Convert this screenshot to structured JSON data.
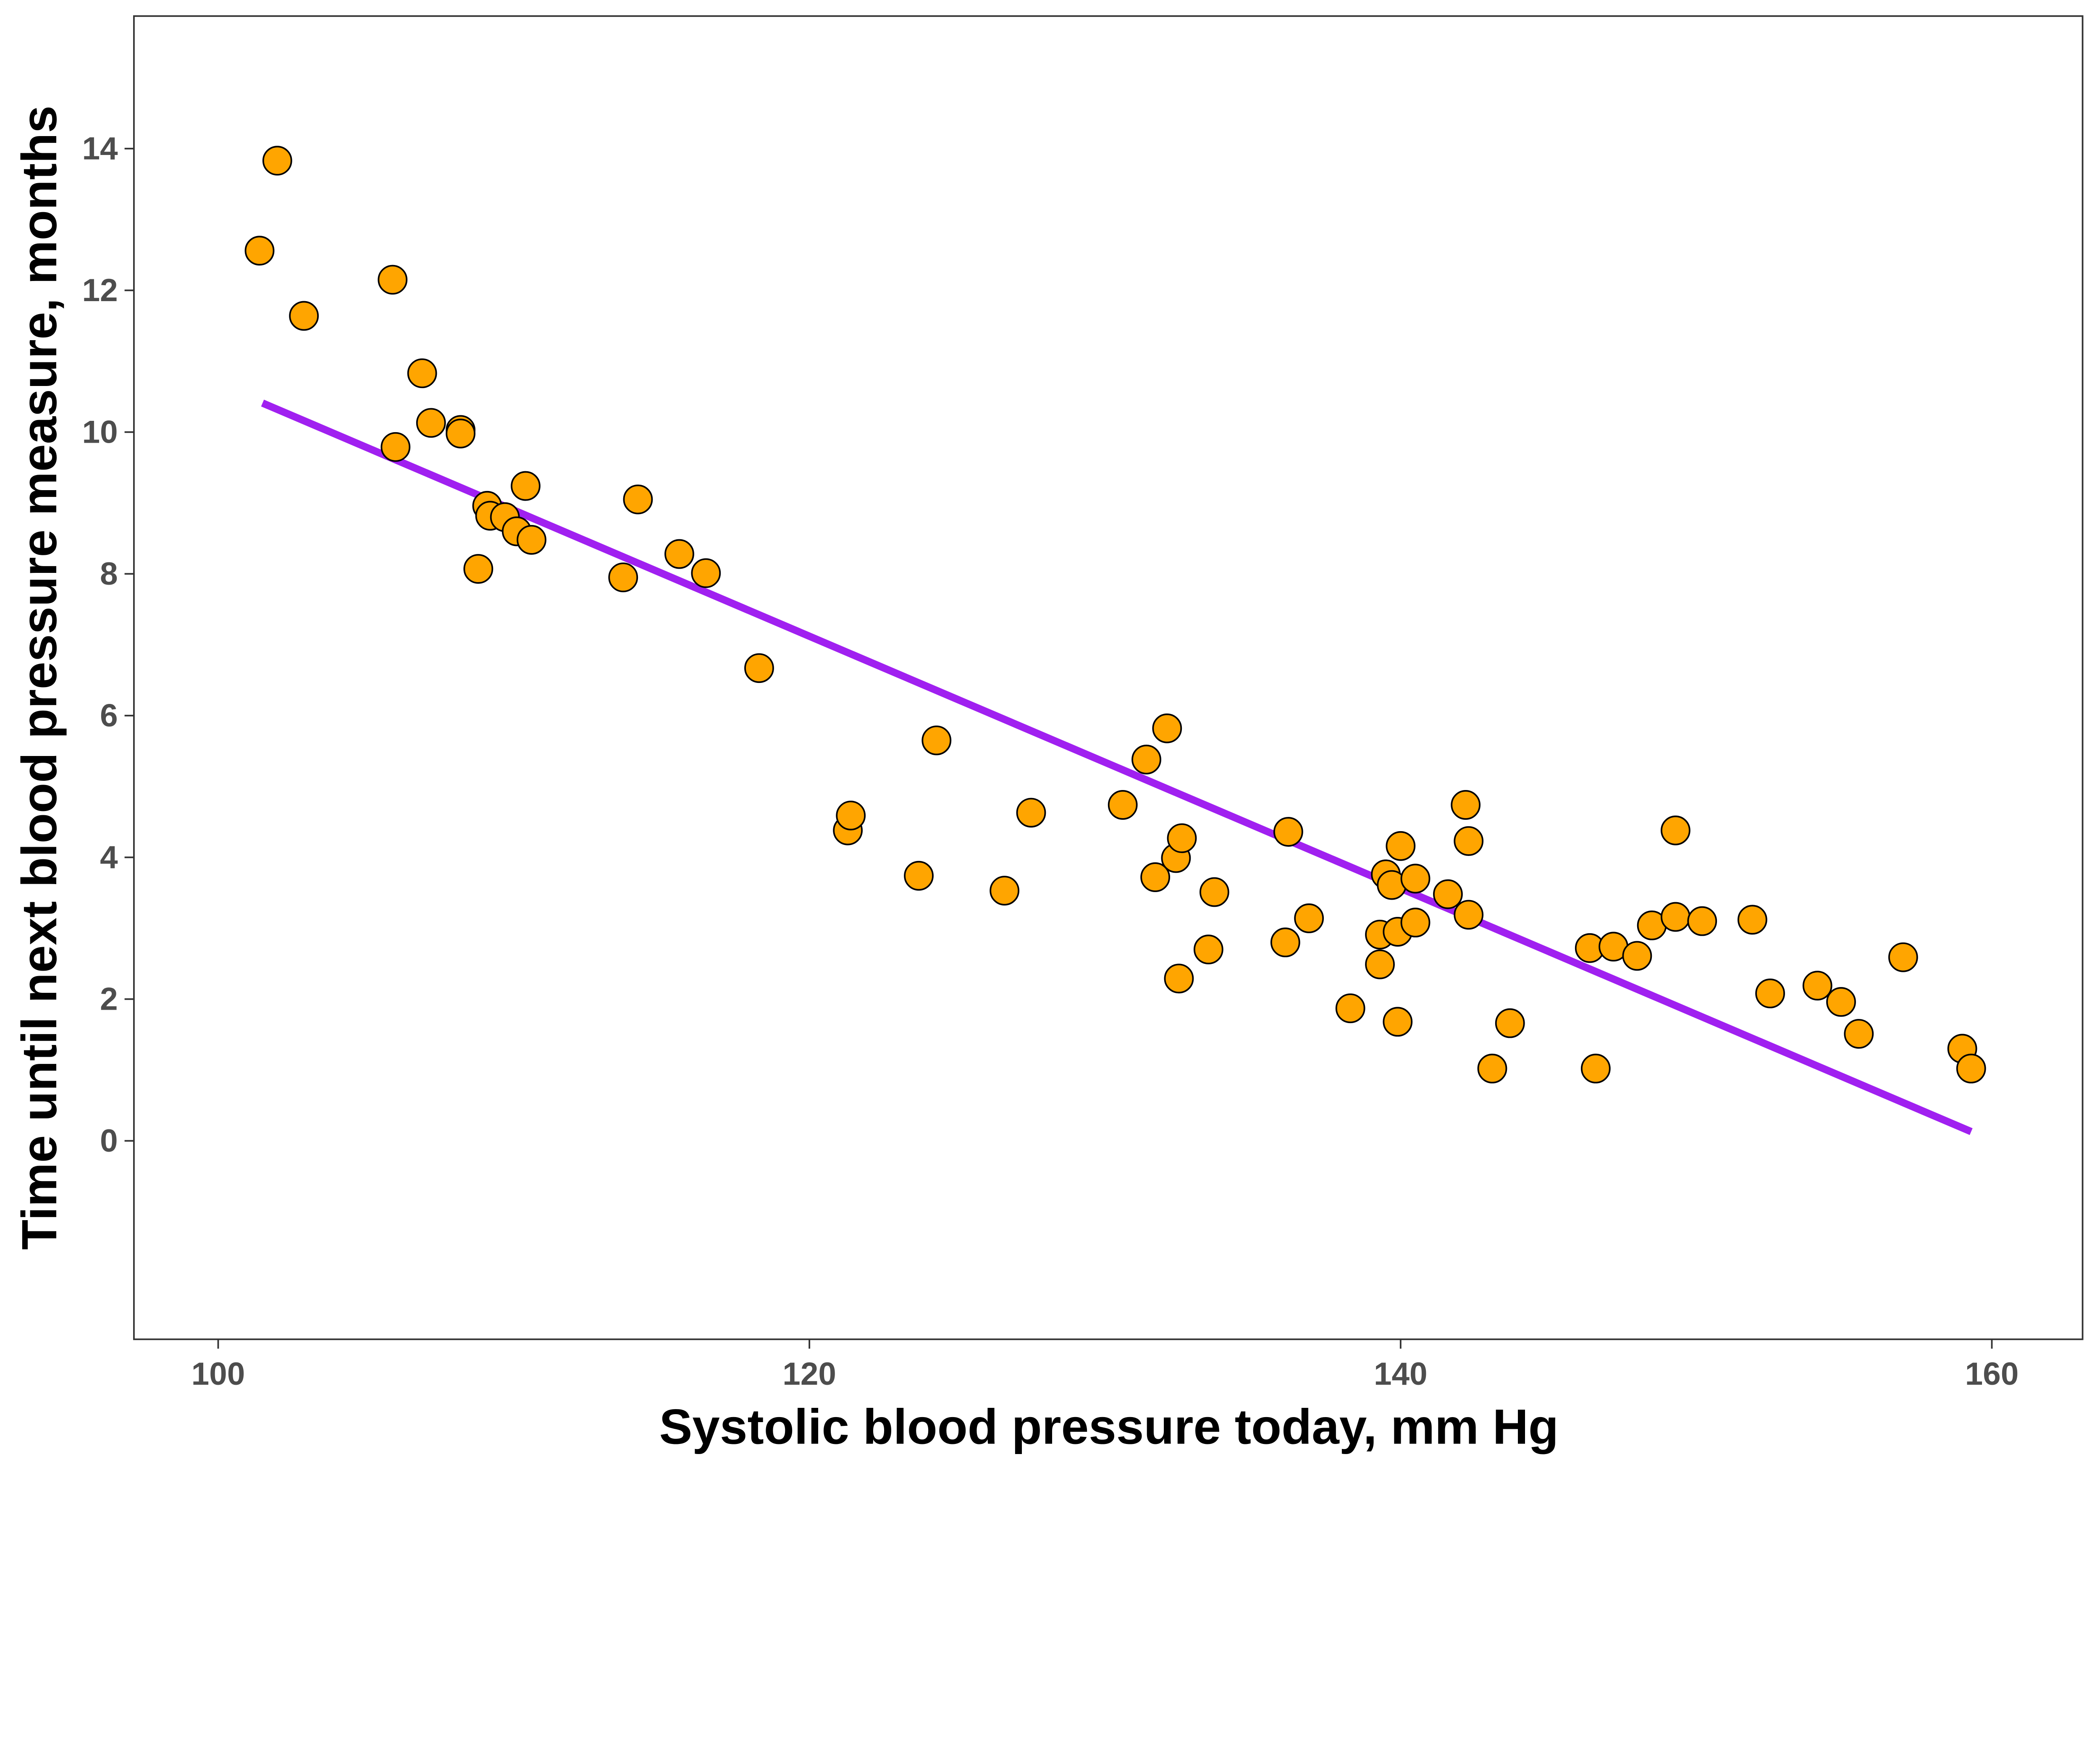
{
  "chart_data": {
    "type": "scatter",
    "title": "",
    "xlabel": "Systolic blood pressure today, mm Hg",
    "ylabel": "Time until next blood pressure measure, months",
    "xlim": [
      97.15,
      163.07
    ],
    "ylim": [
      -2.8,
      15.87
    ],
    "xticks": [
      100,
      120,
      140,
      160
    ],
    "yticks": [
      0,
      2,
      4,
      6,
      8,
      10,
      12,
      14
    ],
    "grid": false,
    "legend": "none",
    "point_color": "#FFA500",
    "point_edge": "#000000",
    "line_color": "#A020F0",
    "points": [
      [
        101.4,
        12.56
      ],
      [
        102.0,
        13.83
      ],
      [
        102.9,
        11.64
      ],
      [
        105.9,
        12.15
      ],
      [
        106.0,
        9.79
      ],
      [
        106.9,
        10.83
      ],
      [
        107.2,
        10.13
      ],
      [
        108.2,
        10.03
      ],
      [
        108.2,
        9.98
      ],
      [
        108.8,
        8.07
      ],
      [
        109.1,
        8.96
      ],
      [
        109.2,
        8.82
      ],
      [
        109.7,
        8.8
      ],
      [
        110.1,
        8.6
      ],
      [
        110.4,
        9.24
      ],
      [
        110.6,
        8.48
      ],
      [
        113.7,
        7.95
      ],
      [
        114.2,
        9.05
      ],
      [
        115.6,
        8.28
      ],
      [
        116.5,
        8.01
      ],
      [
        118.3,
        6.67
      ],
      [
        121.3,
        4.38
      ],
      [
        121.4,
        4.59
      ],
      [
        123.7,
        3.74
      ],
      [
        124.3,
        5.65
      ],
      [
        126.6,
        3.53
      ],
      [
        127.5,
        4.63
      ],
      [
        130.6,
        4.74
      ],
      [
        131.4,
        5.38
      ],
      [
        131.7,
        3.72
      ],
      [
        132.1,
        5.82
      ],
      [
        132.4,
        3.99
      ],
      [
        132.6,
        4.27
      ],
      [
        132.5,
        2.29
      ],
      [
        133.5,
        2.7
      ],
      [
        133.7,
        3.51
      ],
      [
        136.1,
        2.8
      ],
      [
        136.2,
        4.36
      ],
      [
        136.9,
        3.14
      ],
      [
        138.3,
        1.87
      ],
      [
        139.3,
        2.91
      ],
      [
        139.3,
        2.49
      ],
      [
        139.5,
        3.76
      ],
      [
        139.7,
        3.61
      ],
      [
        139.9,
        2.95
      ],
      [
        139.9,
        1.68
      ],
      [
        140.0,
        4.16
      ],
      [
        140.5,
        3.08
      ],
      [
        140.5,
        3.7
      ],
      [
        141.6,
        3.48
      ],
      [
        142.2,
        4.74
      ],
      [
        142.3,
        4.23
      ],
      [
        142.3,
        3.19
      ],
      [
        143.1,
        1.02
      ],
      [
        143.7,
        1.66
      ],
      [
        146.4,
        2.72
      ],
      [
        146.6,
        1.02
      ],
      [
        147.2,
        2.74
      ],
      [
        148.0,
        2.61
      ],
      [
        148.5,
        3.04
      ],
      [
        149.3,
        3.16
      ],
      [
        149.3,
        4.38
      ],
      [
        150.2,
        3.1
      ],
      [
        151.9,
        3.12
      ],
      [
        152.5,
        2.08
      ],
      [
        154.1,
        2.19
      ],
      [
        154.9,
        1.96
      ],
      [
        155.5,
        1.51
      ],
      [
        157.0,
        2.59
      ],
      [
        159.0,
        1.3
      ],
      [
        159.3,
        1.02
      ]
    ],
    "fit_line": {
      "x": [
        101.5,
        159.3
      ],
      "y": [
        10.41,
        0.13
      ]
    }
  }
}
